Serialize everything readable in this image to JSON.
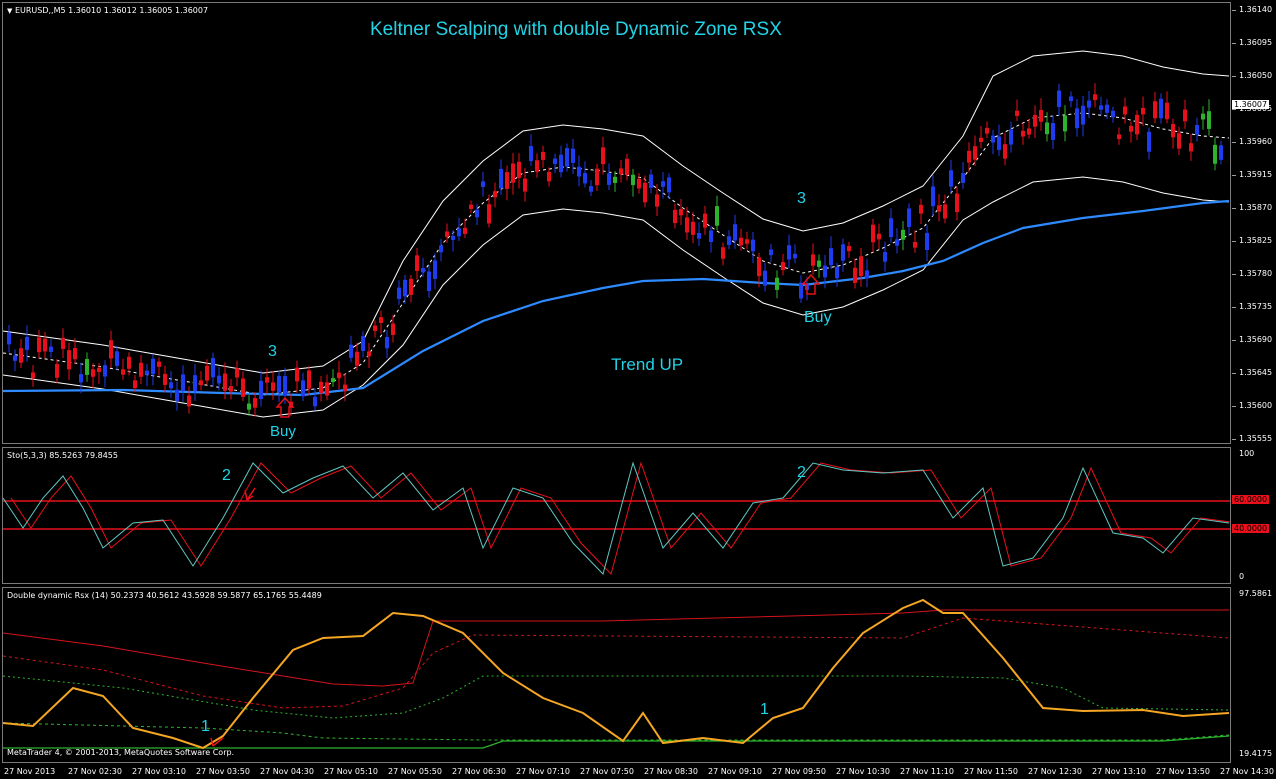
{
  "main_chart": {
    "header_label": "EURUSD,,M5  1.36010 1.36012 1.36005 1.36007",
    "title": "Keltner Scalping with double Dynamic Zone RSX",
    "price_axis": [
      "1.36140",
      "1.36095",
      "1.36050",
      "1.36005",
      "1.35960",
      "1.35915",
      "1.35870",
      "1.35825",
      "1.35780",
      "1.35735",
      "1.35690",
      "1.35645",
      "1.35600",
      "1.35555"
    ],
    "current_price": "1.36007",
    "annotations": {
      "three_left": "3",
      "buy_left": "Buy",
      "three_right": "3",
      "buy_right": "Buy",
      "trend": "Trend UP"
    },
    "colors": {
      "bull": "#1f3df0",
      "bear": "#e8101a",
      "doji": "#2db42d",
      "band": "#ffffff",
      "ma": "#2e8bff",
      "annotation": "#22d3e6",
      "arrow": "#e8101a"
    }
  },
  "sto_panel": {
    "title": "Sto(5,3,3) 85.5263 79.8455",
    "axis": [
      "100",
      "0"
    ],
    "levels": [
      "60.0000",
      "40.0000"
    ],
    "annotations": {
      "two_left": "2",
      "two_right": "2"
    }
  },
  "rsx_panel": {
    "title": "Double dynamic Rsx (14) 50.2373 40.5612 43.5928 59.5877 65.1765 55.4489",
    "axis": [
      "97.5861",
      "19.4175"
    ],
    "annotations": {
      "one_left": "1",
      "one_right": "1"
    },
    "copyright": "MetaTrader 4, © 2001-2013, MetaQuotes Software Corp."
  },
  "time_axis": [
    "27 Nov 2013",
    "27 Nov 02:30",
    "27 Nov 03:10",
    "27 Nov 03:50",
    "27 Nov 04:30",
    "27 Nov 05:10",
    "27 Nov 05:50",
    "27 Nov 06:30",
    "27 Nov 07:10",
    "27 Nov 07:50",
    "27 Nov 08:30",
    "27 Nov 09:10",
    "27 Nov 09:50",
    "27 Nov 10:30",
    "27 Nov 11:10",
    "27 Nov 11:50",
    "27 Nov 12:30",
    "27 Nov 13:10",
    "27 Nov 13:50",
    "27 Nov 14:30"
  ]
}
